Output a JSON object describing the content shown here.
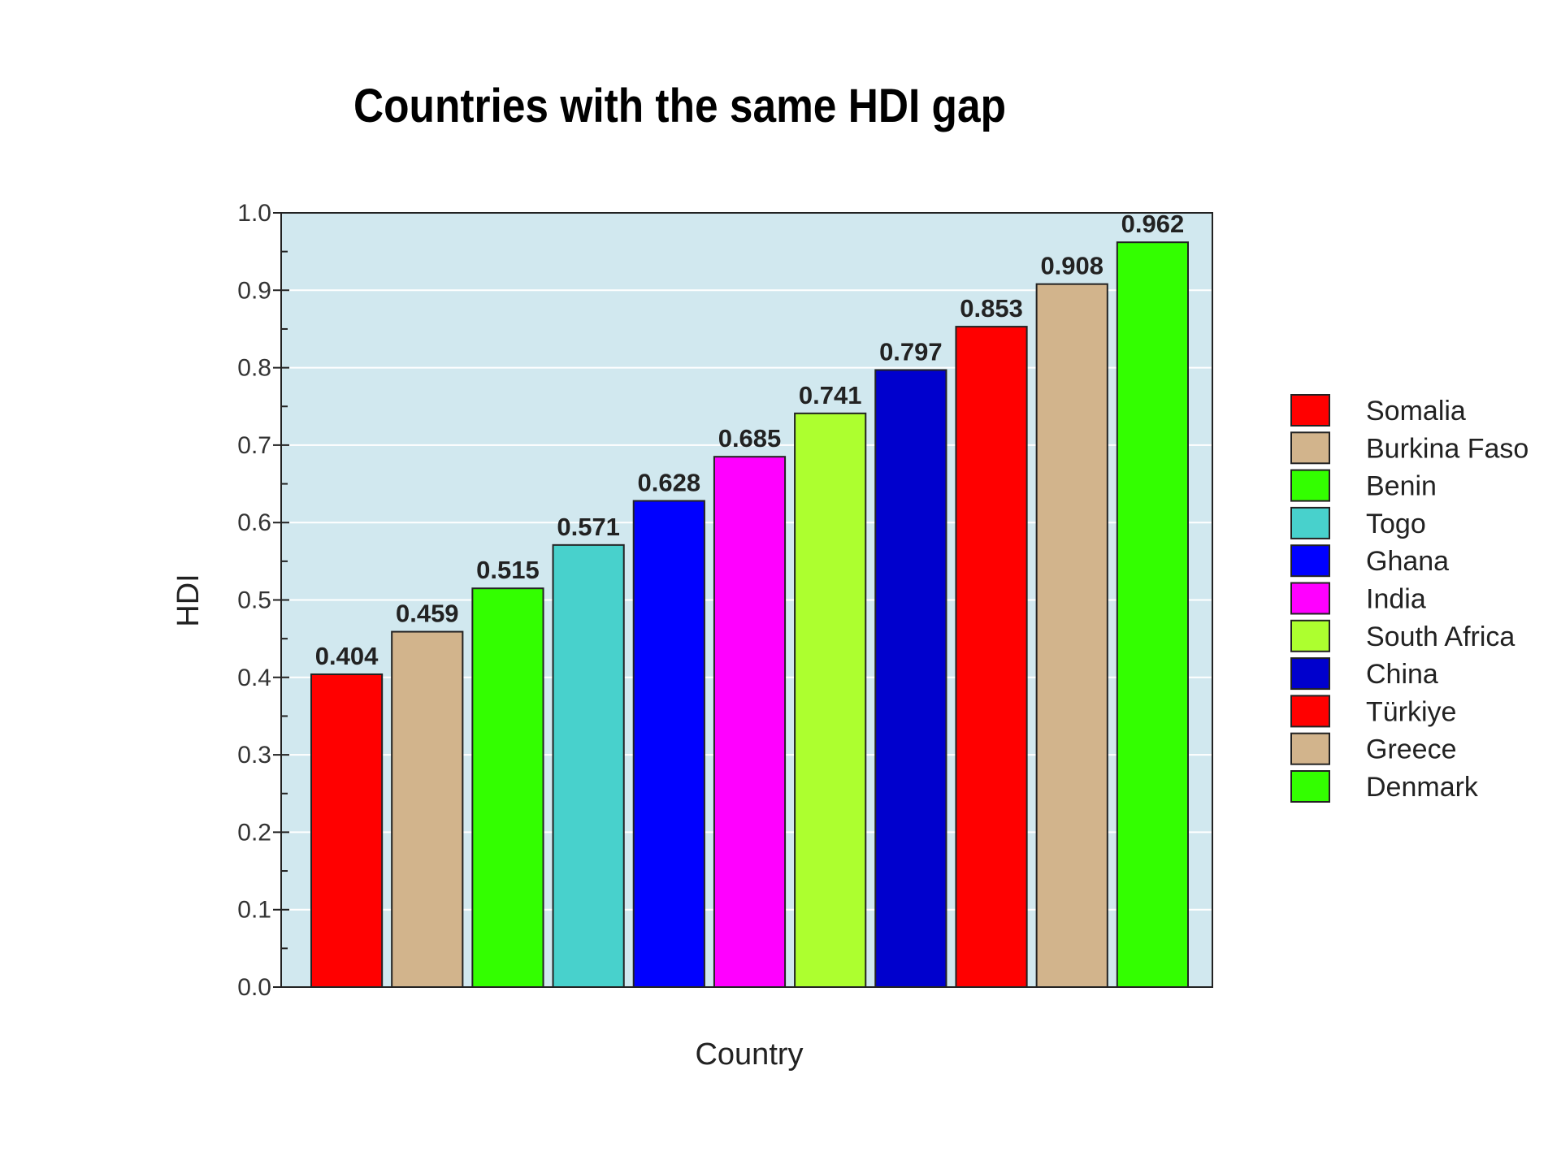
{
  "chart_data": {
    "type": "bar",
    "title": "Countries with the same HDI gap",
    "xlabel": "Country",
    "ylabel": "HDI",
    "ylim": [
      0,
      1.0
    ],
    "yticks": [
      "0.0",
      "0.1",
      "0.2",
      "0.3",
      "0.4",
      "0.5",
      "0.6",
      "0.7",
      "0.8",
      "0.9",
      "1.0"
    ],
    "grid": true,
    "legend_position": "right",
    "background": "#d1e8ef",
    "categories": [
      "Somalia",
      "Burkina Faso",
      "Benin",
      "Togo",
      "Ghana",
      "India",
      "South Africa",
      "China",
      "Türkiye",
      "Greece",
      "Denmark"
    ],
    "values": [
      0.404,
      0.459,
      0.515,
      0.571,
      0.628,
      0.685,
      0.741,
      0.797,
      0.853,
      0.908,
      0.962
    ],
    "data_labels": [
      "0.404",
      "0.459",
      "0.515",
      "0.571",
      "0.628",
      "0.685",
      "0.741",
      "0.797",
      "0.853",
      "0.908",
      "0.962"
    ],
    "colors": [
      "#ff0000",
      "#d2b48c",
      "#33ff00",
      "#48d1cc",
      "#0000ff",
      "#ff00ff",
      "#adff2f",
      "#0000cd",
      "#ff0000",
      "#d2b48c",
      "#33ff00"
    ]
  }
}
